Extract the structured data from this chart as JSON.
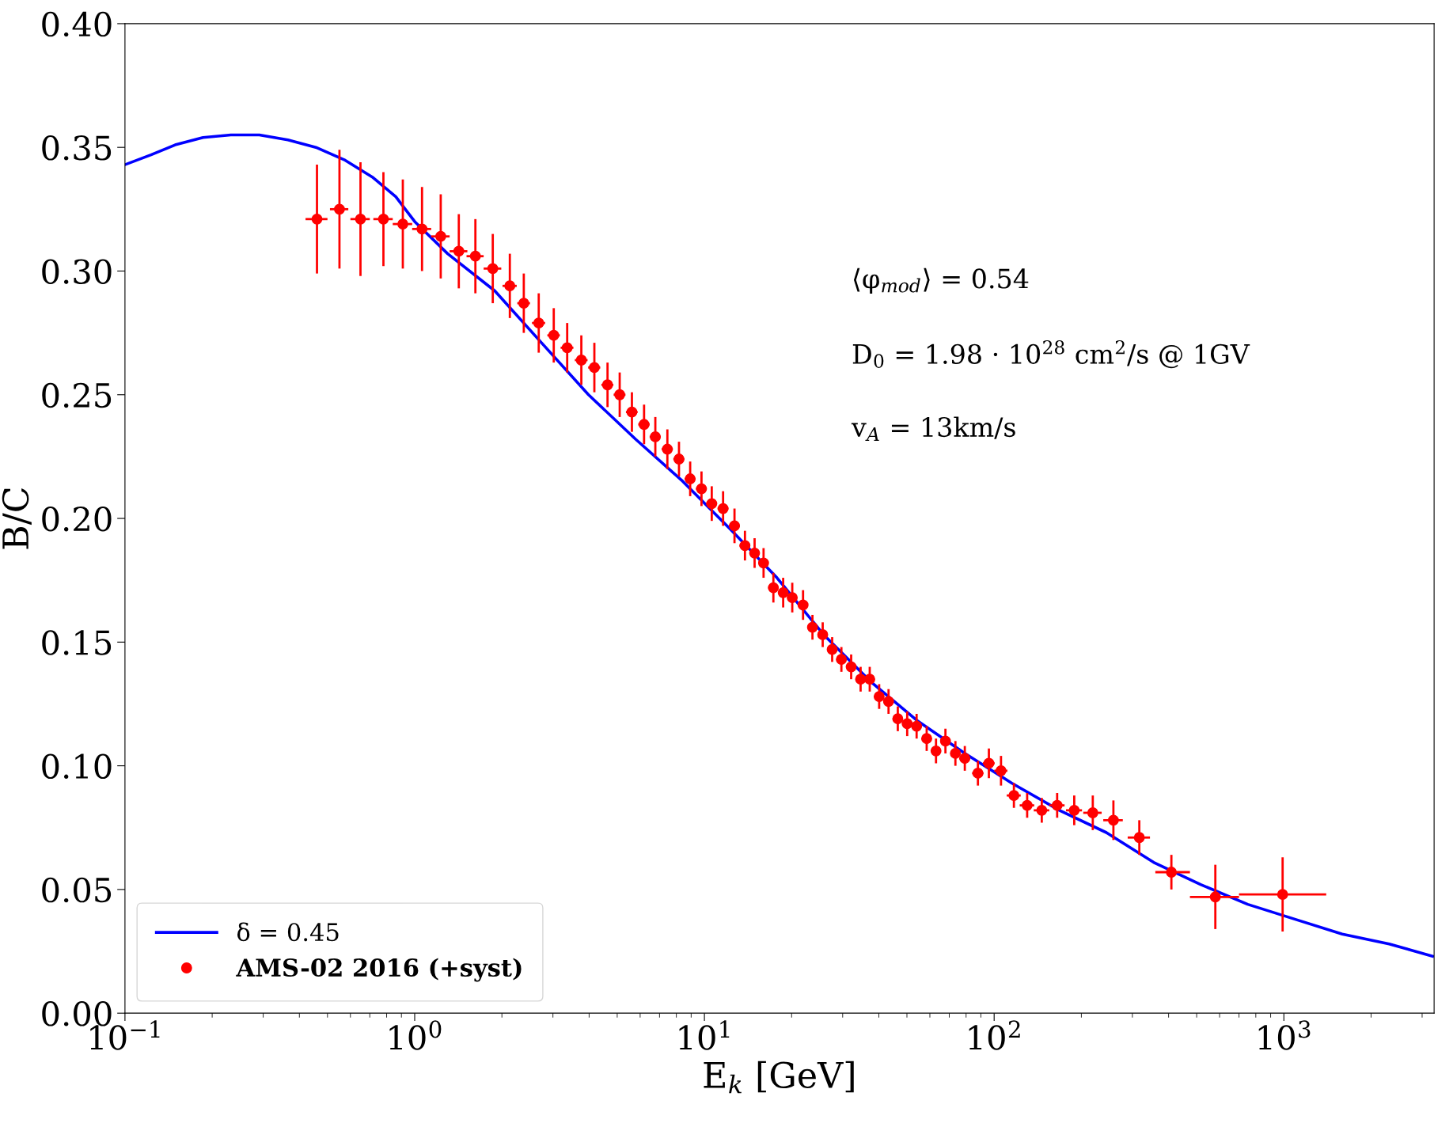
{
  "chart_data": {
    "type": "scatter",
    "xlabel": "E$_{k}$ [GeV]",
    "ylabel": "B/C",
    "annotations": [
      "⟨φ$_{mod}$⟩ = 0.54",
      "D$_{0}$ = 1.98 · 10$^{28}$ cm$^{2}$/s @ 1GV",
      "v$_{A}$ = 13km/s"
    ],
    "log": "x",
    "grid": false,
    "legend": "bottom left",
    "xlim": [
      0.1,
      3300
    ],
    "ylim": [
      0.0,
      0.4
    ],
    "xticks": [
      {
        "value": 0.1,
        "label": "10$^{−1}$"
      },
      {
        "value": 1,
        "label": "10$^{0}$"
      },
      {
        "value": 10,
        "label": "10$^{1}$"
      },
      {
        "value": 100,
        "label": "10$^{2}$"
      },
      {
        "value": 1000,
        "label": "10$^{3}$"
      }
    ],
    "yticks": [
      {
        "value": 0.0,
        "label": "0.00"
      },
      {
        "value": 0.05,
        "label": "0.05"
      },
      {
        "value": 0.1,
        "label": "0.10"
      },
      {
        "value": 0.15,
        "label": "0.15"
      },
      {
        "value": 0.2,
        "label": "0.20"
      },
      {
        "value": 0.25,
        "label": "0.25"
      },
      {
        "value": 0.3,
        "label": "0.30"
      },
      {
        "value": 0.35,
        "label": "0.35"
      },
      {
        "value": 0.4,
        "label": "0.40"
      }
    ],
    "series": [
      {
        "name": "δ = 0.45",
        "type": "line",
        "color": "#0000ff",
        "marker": "none",
        "line_style": "solid",
        "x": [
          0.1,
          0.123,
          0.149,
          0.186,
          0.232,
          0.291,
          0.365,
          0.456,
          0.571,
          0.714,
          0.861,
          1.0,
          1.3,
          1.89,
          2.74,
          3.98,
          5.79,
          8.42,
          12.2,
          17.8,
          25.8,
          37.5,
          54.6,
          79.3,
          115,
          168,
          244,
          355,
          516,
          750,
          1090,
          1590,
          2310,
          3260
        ],
        "values": [
          0.343,
          0.347,
          0.351,
          0.354,
          0.355,
          0.355,
          0.353,
          0.35,
          0.345,
          0.338,
          0.33,
          0.32,
          0.307,
          0.292,
          0.271,
          0.25,
          0.232,
          0.215,
          0.196,
          0.176,
          0.153,
          0.134,
          0.118,
          0.105,
          0.093,
          0.082,
          0.073,
          0.061,
          0.052,
          0.044,
          0.038,
          0.032,
          0.028,
          0.023
        ]
      },
      {
        "name": "AMS-02 2016 (+syst)",
        "color": "#ff0000",
        "marker": "circle",
        "x": [
          0.46,
          0.55,
          0.65,
          0.78,
          0.91,
          1.06,
          1.23,
          1.42,
          1.62,
          1.86,
          2.13,
          2.38,
          2.68,
          3.02,
          3.36,
          3.76,
          4.17,
          4.63,
          5.1,
          5.62,
          6.19,
          6.77,
          7.45,
          8.17,
          8.93,
          9.77,
          10.6,
          11.6,
          12.7,
          13.8,
          14.9,
          16.0,
          17.3,
          18.7,
          20.1,
          21.9,
          23.6,
          25.6,
          27.6,
          29.7,
          32.1,
          34.6,
          37.2,
          40.1,
          43.2,
          46.5,
          50.1,
          54.0,
          58.5,
          63.0,
          67.9,
          73.5,
          79.2,
          87.9,
          95.9,
          105.6,
          117,
          130,
          146,
          165,
          189,
          219,
          258,
          317,
          409,
          580,
          990
        ],
        "values": [
          0.321,
          0.325,
          0.321,
          0.321,
          0.319,
          0.317,
          0.314,
          0.308,
          0.306,
          0.301,
          0.294,
          0.287,
          0.279,
          0.274,
          0.269,
          0.264,
          0.261,
          0.254,
          0.25,
          0.243,
          0.238,
          0.233,
          0.228,
          0.224,
          0.216,
          0.212,
          0.206,
          0.204,
          0.197,
          0.189,
          0.186,
          0.182,
          0.172,
          0.17,
          0.168,
          0.165,
          0.156,
          0.153,
          0.147,
          0.143,
          0.14,
          0.135,
          0.135,
          0.128,
          0.126,
          0.119,
          0.117,
          0.116,
          0.111,
          0.106,
          0.11,
          0.105,
          0.103,
          0.097,
          0.101,
          0.098,
          0.088,
          0.084,
          0.082,
          0.084,
          0.082,
          0.081,
          0.078,
          0.071,
          0.057,
          0.047,
          0.048
        ],
        "errors": [
          0.022,
          0.024,
          0.023,
          0.019,
          0.018,
          0.017,
          0.017,
          0.015,
          0.015,
          0.014,
          0.013,
          0.012,
          0.012,
          0.011,
          0.01,
          0.01,
          0.01,
          0.009,
          0.009,
          0.008,
          0.008,
          0.008,
          0.008,
          0.007,
          0.007,
          0.007,
          0.007,
          0.007,
          0.007,
          0.006,
          0.006,
          0.006,
          0.006,
          0.006,
          0.006,
          0.006,
          0.005,
          0.005,
          0.005,
          0.005,
          0.005,
          0.005,
          0.005,
          0.005,
          0.005,
          0.005,
          0.005,
          0.005,
          0.005,
          0.005,
          0.005,
          0.005,
          0.005,
          0.005,
          0.006,
          0.006,
          0.005,
          0.005,
          0.005,
          0.005,
          0.006,
          0.007,
          0.008,
          0.007,
          0.007,
          0.013,
          0.015
        ],
        "xerrors": [
          0.04,
          0.04,
          0.05,
          0.06,
          0.07,
          0.08,
          0.09,
          0.1,
          0.11,
          0.13,
          0.12,
          0.12,
          0.14,
          0.15,
          0.17,
          0.19,
          0.2,
          0.22,
          0.24,
          0.26,
          0.28,
          0.3,
          0.33,
          0.36,
          0.39,
          0.42,
          0.46,
          0.5,
          0.55,
          0.59,
          0.6,
          0.65,
          0.7,
          0.75,
          0.8,
          0.9,
          0.95,
          1.0,
          1.1,
          1.2,
          1.3,
          1.4,
          1.5,
          1.6,
          1.7,
          1.9,
          2.0,
          2.2,
          2.4,
          2.5,
          2.7,
          2.9,
          3.5,
          4,
          4.5,
          5.5,
          6.5,
          7.5,
          9,
          10,
          12,
          16,
          20,
          28,
          [
            360,
            474
          ],
          [
            474,
            700
          ],
          [
            700,
            1400
          ]
        ]
      }
    ]
  }
}
